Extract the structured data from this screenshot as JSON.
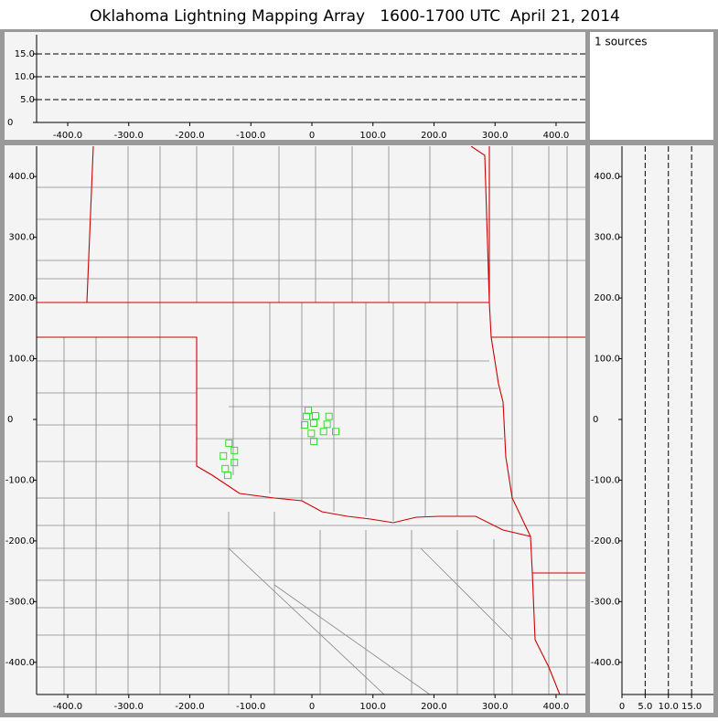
{
  "title": "Oklahoma Lightning Mapping Array   1600-1700 UTC  April 21, 2014",
  "annotation": "1 sources",
  "chart_data": [
    {
      "type": "scatter",
      "grid": "y",
      "xlim": [
        -451,
        448
      ],
      "xticks": [
        {
          "value": -400,
          "label": "-400.0"
        },
        {
          "value": -300,
          "label": "-300.0"
        },
        {
          "value": -200,
          "label": "-200.0"
        },
        {
          "value": -100,
          "label": "-100.0"
        },
        0,
        {
          "value": 100,
          "label": "100.0"
        },
        {
          "value": 200,
          "label": "200.0"
        },
        {
          "value": 300,
          "label": "300.0"
        },
        {
          "value": 400,
          "label": "400.0"
        }
      ],
      "ylim": [
        0,
        19.2
      ],
      "yticks": [
        0,
        {
          "value": 5,
          "label": "5.0"
        },
        {
          "value": 10,
          "label": "10.0"
        },
        {
          "value": 15,
          "label": "15.0"
        }
      ]
    },
    {
      "type": "scatter",
      "color": "#33dd33",
      "xlim": [
        -451,
        448
      ],
      "ylim": [
        -453,
        450
      ],
      "xticks": [
        {
          "value": -400,
          "label": "-400.0"
        },
        {
          "value": -300,
          "label": "-300.0"
        },
        {
          "value": -200,
          "label": "-200.0"
        },
        {
          "value": -100,
          "label": "-100.0"
        },
        0,
        {
          "value": 100,
          "label": "100.0"
        },
        {
          "value": 200,
          "label": "200.0"
        },
        {
          "value": 300,
          "label": "300.0"
        },
        {
          "value": 400,
          "label": "400.0"
        }
      ],
      "yticks": [
        {
          "value": 400,
          "label": "400.0"
        },
        {
          "value": 300,
          "label": "300.0"
        },
        {
          "value": 200,
          "label": "200.0"
        },
        {
          "value": 100,
          "label": "100.0"
        },
        0,
        {
          "value": -100,
          "label": "-100.0"
        },
        {
          "value": -200,
          "label": "-200.0"
        },
        {
          "value": -300,
          "label": "-300.0"
        },
        {
          "value": -400,
          "label": "-400.0"
        }
      ],
      "x": [
        -6,
        -9,
        6,
        28,
        -12,
        3,
        25,
        -1,
        19,
        39,
        3,
        -136,
        -127,
        -145,
        -127,
        -142,
        -138
      ],
      "values": [
        15,
        5,
        6,
        5,
        -9,
        -6,
        -8,
        -23,
        -20,
        -20,
        -36,
        -39,
        -51,
        -60,
        -71,
        -81,
        -92
      ]
    },
    {
      "type": "scatter",
      "grid": "x",
      "xlim": [
        0,
        19.7
      ],
      "ylim": [
        -453,
        450
      ],
      "xticks": [
        0,
        {
          "value": 5,
          "label": "5.0"
        },
        {
          "value": 10,
          "label": "10.0"
        },
        {
          "value": 15,
          "label": "15.0"
        }
      ],
      "yticks": [
        {
          "value": 400,
          "label": "400.0"
        },
        {
          "value": 300,
          "label": "300.0"
        },
        {
          "value": 200,
          "label": "200.0"
        },
        {
          "value": 100,
          "label": "100.0"
        },
        0,
        {
          "value": -100,
          "label": "-100.0"
        },
        {
          "value": -200,
          "label": "-200.0"
        },
        {
          "value": -300,
          "label": "-300.0"
        },
        {
          "value": -400,
          "label": "-400.0"
        }
      ]
    }
  ]
}
